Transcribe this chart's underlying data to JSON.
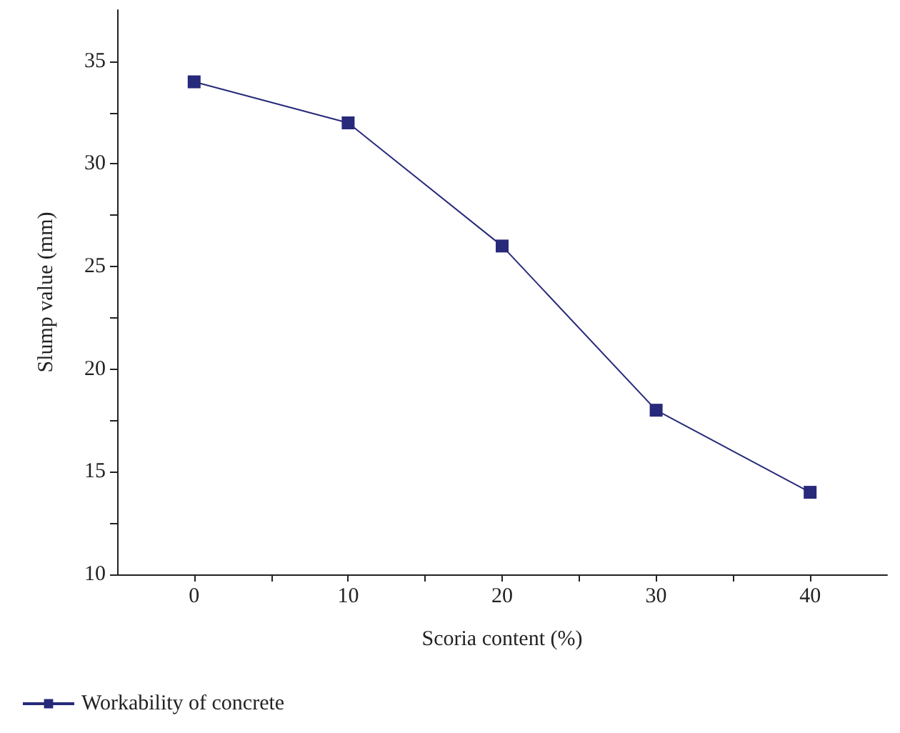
{
  "chart_data": {
    "type": "line",
    "xlabel": "Scoria content (%)",
    "ylabel": "Slump value (mm)",
    "x": [
      0,
      10,
      20,
      30,
      40
    ],
    "series": [
      {
        "name": "Workability of concrete",
        "color": "#27297a",
        "values": [
          34,
          32,
          26,
          18,
          14
        ]
      }
    ],
    "xlim": [
      -5,
      45
    ],
    "xticks": [
      0,
      {
        "value": 5,
        "label": null
      },
      10,
      {
        "value": 15,
        "label": null
      },
      20,
      {
        "value": 25,
        "label": null
      },
      30,
      {
        "value": 35,
        "label": null
      },
      40
    ],
    "ylim": [
      10,
      37.5
    ],
    "yticks": [
      10,
      {
        "value": 12.5,
        "label": null
      },
      15,
      {
        "value": 17.5,
        "label": null
      },
      20,
      {
        "value": 22.5,
        "label": null
      },
      25,
      {
        "value": 27.5,
        "label": null
      },
      30,
      {
        "value": 32.5,
        "label": null
      },
      35
    ],
    "grid": false,
    "legend": "bottom left",
    "marker": "square",
    "line_style": "solid"
  }
}
